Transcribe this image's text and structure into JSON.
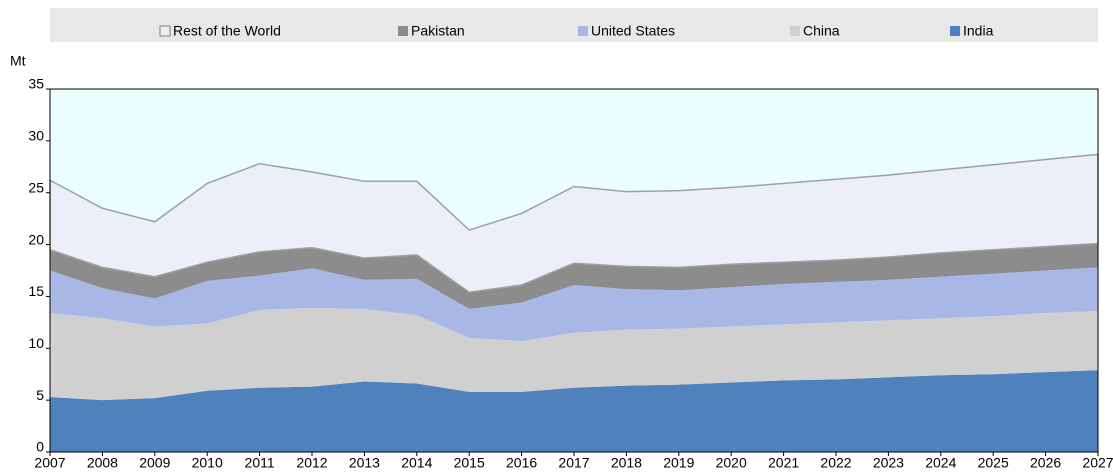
{
  "chart_data": {
    "type": "stacked_area",
    "y_label": "Mt",
    "x": [
      2007,
      2008,
      2009,
      2010,
      2011,
      2012,
      2013,
      2014,
      2015,
      2016,
      2017,
      2018,
      2019,
      2020,
      2021,
      2022,
      2023,
      2024,
      2025,
      2026,
      2027
    ],
    "series": [
      {
        "name": "Rest of the World",
        "color": "#eceff8",
        "values": [
          6.7,
          5.7,
          5.3,
          7.6,
          8.5,
          7.3,
          7.4,
          7.1,
          6.0,
          6.9,
          7.4,
          7.2,
          7.4,
          7.4,
          7.6,
          7.8,
          7.9,
          8.0,
          8.2,
          8.4,
          8.6
        ]
      },
      {
        "name": "Pakistan",
        "color": "#8c8c8c",
        "values": [
          2.0,
          2.0,
          2.1,
          1.8,
          2.3,
          2.0,
          2.1,
          2.3,
          1.6,
          1.7,
          2.1,
          2.2,
          2.2,
          2.2,
          2.1,
          2.1,
          2.2,
          2.3,
          2.3,
          2.3,
          2.3
        ]
      },
      {
        "name": "United States",
        "color": "#a9b7e6",
        "values": [
          4.1,
          2.9,
          2.7,
          4.1,
          3.3,
          3.8,
          2.8,
          3.5,
          2.8,
          3.7,
          4.6,
          3.9,
          3.7,
          3.8,
          3.9,
          3.9,
          3.9,
          4.0,
          4.1,
          4.1,
          4.2
        ]
      },
      {
        "name": "China",
        "color": "#d0d0d0",
        "values": [
          8.1,
          7.9,
          6.9,
          6.5,
          7.5,
          7.6,
          7.0,
          6.6,
          5.2,
          4.9,
          5.3,
          5.4,
          5.4,
          5.4,
          5.4,
          5.5,
          5.5,
          5.5,
          5.6,
          5.7,
          5.7
        ]
      },
      {
        "name": "India",
        "color": "#4f81bd",
        "values": [
          5.3,
          5.0,
          5.2,
          5.9,
          6.2,
          6.3,
          6.8,
          6.6,
          5.8,
          5.8,
          6.2,
          6.4,
          6.5,
          6.7,
          6.9,
          7.0,
          7.2,
          7.4,
          7.5,
          7.7,
          7.9
        ]
      }
    ],
    "xlim": [
      2007,
      2027
    ],
    "xticks": [
      2007,
      2008,
      2009,
      2010,
      2011,
      2012,
      2013,
      2014,
      2015,
      2016,
      2017,
      2018,
      2019,
      2020,
      2021,
      2022,
      2023,
      2024,
      2025,
      2026,
      2027
    ],
    "ylim": [
      0,
      35
    ],
    "yticks": [
      0,
      5,
      10,
      15,
      20,
      25,
      30,
      35
    ],
    "plot_background": "#eafefe",
    "legend": "top"
  }
}
